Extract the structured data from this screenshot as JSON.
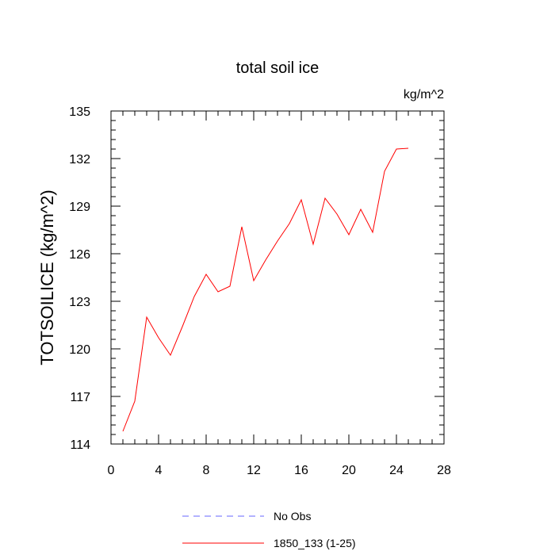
{
  "chart_data": {
    "type": "line",
    "title": "total soil ice",
    "units": "kg/m^2",
    "ylabel": "TOTSOILICE  (kg/m^2)",
    "xlabel": "",
    "xlim": [
      0,
      28
    ],
    "ylim": [
      114,
      135
    ],
    "x_ticks": [
      0,
      4,
      8,
      12,
      16,
      20,
      24,
      28
    ],
    "y_ticks": [
      114,
      117,
      120,
      123,
      126,
      129,
      132,
      135
    ],
    "grid": false,
    "legend_position": "bottom-center",
    "series": [
      {
        "name": "No Obs",
        "color": "#0000ff",
        "style": "dashed",
        "x": [],
        "y": []
      },
      {
        "name": "1850_133 (1-25)",
        "color": "#ff0000",
        "style": "solid",
        "x": [
          1,
          2,
          3,
          4,
          5,
          6,
          7,
          8,
          9,
          10,
          11,
          12,
          13,
          14,
          15,
          16,
          17,
          18,
          19,
          20,
          21,
          22,
          23,
          24,
          25
        ],
        "y": [
          114.8,
          116.7,
          122.0,
          120.7,
          119.6,
          121.4,
          123.3,
          124.7,
          123.6,
          123.95,
          127.7,
          124.3,
          125.6,
          126.8,
          127.9,
          129.4,
          126.6,
          129.5,
          128.5,
          127.2,
          128.8,
          127.35,
          131.2,
          132.6,
          132.65
        ]
      }
    ]
  }
}
